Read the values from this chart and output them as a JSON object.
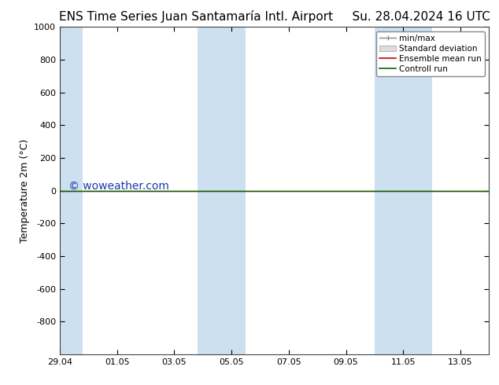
{
  "title_left": "ENS Time Series Juan Santamaría Intl. Airport",
  "title_right": "Su. 28.04.2024 16 UTC",
  "ylabel": "Temperature 2m (°C)",
  "ylim_top": -1000,
  "ylim_bottom": 1000,
  "yticks": [
    -800,
    -600,
    -400,
    -200,
    0,
    200,
    400,
    600,
    800,
    1000
  ],
  "xtick_labels": [
    "29.04",
    "01.05",
    "03.05",
    "05.05",
    "07.05",
    "09.05",
    "11.05",
    "13.05"
  ],
  "xtick_positions": [
    0,
    2,
    4,
    6,
    8,
    10,
    12,
    14
  ],
  "shaded_bands": [
    {
      "x_start": 0.0,
      "x_end": 0.8,
      "color": "#cce0f0"
    },
    {
      "x_start": 4.8,
      "x_end": 6.5,
      "color": "#cce0f0"
    },
    {
      "x_start": 11.0,
      "x_end": 13.0,
      "color": "#cce0f0"
    }
  ],
  "xlim": [
    0,
    15
  ],
  "horizontal_line_y": 0,
  "line_red_color": "#cc0000",
  "line_green_color": "#006600",
  "watermark_text": "© woweather.com",
  "watermark_color": "#1a3ab0",
  "watermark_fontsize": 10,
  "legend_items": [
    {
      "label": "min/max",
      "color": "#888888",
      "style": "errorbar"
    },
    {
      "label": "Standard deviation",
      "color": "#cccccc",
      "style": "bar"
    },
    {
      "label": "Ensemble mean run",
      "color": "#cc0000",
      "style": "line"
    },
    {
      "label": "Controll run",
      "color": "#006600",
      "style": "line"
    }
  ],
  "background_color": "#ffffff",
  "plot_bg_color": "#ffffff",
  "spine_color": "#444444",
  "title_fontsize": 11,
  "axis_label_fontsize": 9,
  "tick_fontsize": 8,
  "legend_fontsize": 7.5
}
